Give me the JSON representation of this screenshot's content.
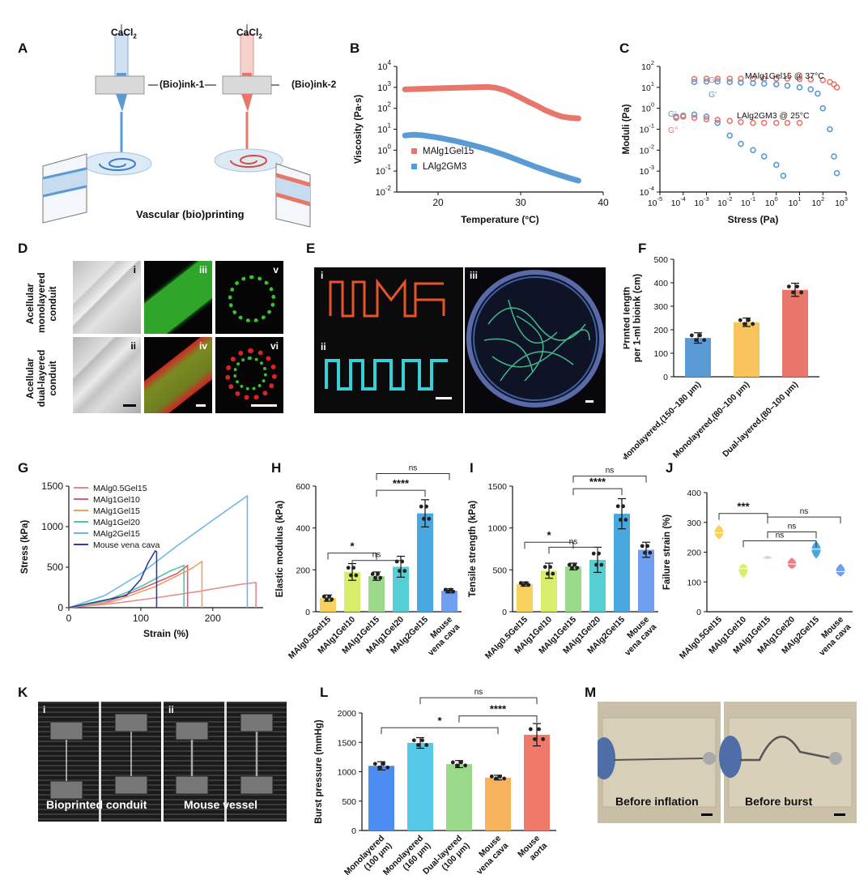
{
  "panel_labels": {
    "A": "A",
    "B": "B",
    "C": "C",
    "D": "D",
    "E": "E",
    "F": "F",
    "G": "G",
    "H": "H",
    "I": "I",
    "J": "J",
    "K": "K",
    "L": "L",
    "M": "M"
  },
  "panel_a": {
    "cacl_left": "CaCl",
    "cacl_right": "CaCl",
    "cacl_sub": "2",
    "ink1": "(Bio)ink-1",
    "ink2": "(Bio)ink-2",
    "caption": "Vascular (bio)printing",
    "colors": {
      "blue": "#5b9bd5",
      "red": "#e8766b"
    }
  },
  "panel_d": {
    "row1": [
      "Acellular",
      "monolayered",
      "conduit"
    ],
    "row2": [
      "Acellular",
      "dual-layered",
      "conduit"
    ],
    "numerals": [
      "i",
      "ii",
      "iii",
      "iv",
      "v",
      "vi"
    ]
  },
  "panel_e": {
    "numerals": [
      "i",
      "ii",
      "iii"
    ]
  },
  "panel_k": {
    "numerals": [
      "i",
      "ii"
    ],
    "left_caption": "Bioprinted conduit",
    "right_caption": "Mouse vessel"
  },
  "panel_m": {
    "left_caption": "Before inflation",
    "right_caption": "Before burst"
  },
  "chart_data": [
    {
      "id": "B",
      "type": "line",
      "xlabel": "Temperature (°C)",
      "ylabel": "Viscosity (Pa·s)",
      "xlim": [
        15,
        40
      ],
      "ylim": [
        0.01,
        10000
      ],
      "yscale": "log",
      "xticks": [
        "20",
        "30",
        "40"
      ],
      "yticks": [
        "10",
        "10",
        "10",
        "10",
        "10",
        "10",
        "10"
      ],
      "ytick_exp": [
        "-2",
        "-1",
        "0",
        "1",
        "2",
        "3",
        "4"
      ],
      "series": [
        {
          "name": "MAlg1Gel15",
          "color": "#e8766b",
          "x": [
            16,
            18,
            20,
            22,
            24,
            26,
            27,
            28,
            29,
            30,
            31,
            32,
            33,
            34,
            35,
            36,
            37
          ],
          "y": [
            800,
            850,
            900,
            950,
            1000,
            1050,
            950,
            750,
            500,
            320,
            200,
            130,
            80,
            55,
            40,
            35,
            33
          ]
        },
        {
          "name": "LAlg2GM3",
          "color": "#5b9bd5",
          "x": [
            16,
            17,
            18,
            20,
            22,
            24,
            26,
            28,
            30,
            32,
            34,
            36,
            37
          ],
          "y": [
            5,
            5.5,
            5.2,
            4,
            2.8,
            1.8,
            1.1,
            0.6,
            0.3,
            0.15,
            0.08,
            0.045,
            0.035
          ]
        }
      ]
    },
    {
      "id": "C",
      "type": "scatter",
      "xlabel": "Stress (Pa)",
      "ylabel": "Moduli (Pa)",
      "xscale": "log",
      "yscale": "log",
      "xlim": [
        1e-05,
        1000
      ],
      "ylim": [
        0.0001,
        100
      ],
      "xtick_exp": [
        "-5",
        "-4",
        "-3",
        "-2",
        "-1",
        "0",
        "1",
        "2",
        "3"
      ],
      "ytick_exp": [
        "-4",
        "-3",
        "-2",
        "-1",
        "0",
        "1",
        "2"
      ],
      "annotations": [
        "MAlg1Gel15 @ 37°C",
        "LAlg2GM3 @ 25°C"
      ],
      "series": [
        {
          "name": "G''",
          "group": "MAlg1Gel15",
          "color": "#e8766b",
          "x": [
            0.0003,
            0.001,
            0.003,
            0.01,
            0.03,
            0.1,
            0.3,
            1,
            3,
            10,
            30,
            100,
            200,
            300,
            400
          ],
          "y": [
            25,
            26,
            26,
            26,
            26,
            26,
            26,
            26,
            26,
            25,
            24,
            22,
            18,
            14,
            10
          ]
        },
        {
          "name": "G'",
          "group": "MAlg1Gel15",
          "color": "#5b9bd5",
          "x": [
            0.0003,
            0.001,
            0.003,
            0.01,
            0.03,
            0.1,
            0.3,
            1,
            3,
            10,
            30,
            60,
            100,
            200,
            300,
            400
          ],
          "y": [
            18,
            19,
            19,
            18,
            17,
            16,
            15,
            14,
            12,
            10,
            8,
            5,
            1,
            0.1,
            0.005,
            0.0008
          ]
        },
        {
          "name": "G'",
          "group": "LAlg2GM3",
          "color": "#5b9bd5",
          "x": [
            5e-05,
            0.0001,
            0.0003,
            0.001,
            0.003,
            0.01,
            0.03,
            0.1,
            0.3,
            1,
            2
          ],
          "y": [
            0.4,
            0.45,
            0.5,
            0.4,
            0.2,
            0.05,
            0.02,
            0.01,
            0.005,
            0.002,
            0.0006
          ]
        },
        {
          "name": "G''",
          "group": "LAlg2GM3",
          "color": "#e8766b",
          "x": [
            5e-05,
            0.0001,
            0.0003,
            0.001,
            0.003,
            0.01,
            0.03,
            0.1,
            0.3,
            1,
            3,
            10
          ],
          "y": [
            0.35,
            0.4,
            0.35,
            0.3,
            0.28,
            0.25,
            0.22,
            0.2,
            0.2,
            0.2,
            0.2,
            0.2
          ]
        }
      ]
    },
    {
      "id": "F",
      "type": "bar",
      "ylabel": "Printed length per 1-ml bioink (cm)",
      "ylabel_lines": [
        "Printed length",
        "per 1-ml bioink (cm)"
      ],
      "ylim": [
        0,
        500
      ],
      "yticks": [
        "0",
        "100",
        "200",
        "300",
        "400",
        "500"
      ],
      "categories": [
        [
          "Monolayered",
          "(150–180 μm)"
        ],
        [
          "Monolayered",
          "(80–100 μm)"
        ],
        [
          "Dual-layered",
          "(80–100 μm)"
        ]
      ],
      "values": [
        165,
        232,
        370
      ],
      "errors": [
        22,
        18,
        28
      ],
      "colors": [
        "#5b9bd5",
        "#f7c45e",
        "#e8766b"
      ]
    },
    {
      "id": "G",
      "type": "line",
      "xlabel": "Strain (%)",
      "ylabel": "Stress (kPa)",
      "xlim": [
        0,
        270
      ],
      "ylim": [
        0,
        1500
      ],
      "xticks": [
        "0",
        "100",
        "200"
      ],
      "yticks": [
        "0",
        "500",
        "1000",
        "1500"
      ],
      "series": [
        {
          "name": "MAlg0.5Gel15",
          "color": "#e58a8a",
          "x": [
            0,
            60,
            120,
            180,
            240,
            260
          ],
          "y": [
            0,
            50,
            120,
            200,
            290,
            310
          ]
        },
        {
          "name": "MAlg1Gel10",
          "color": "#e05a7a",
          "x": [
            0,
            50,
            100,
            150,
            165
          ],
          "y": [
            0,
            60,
            230,
            420,
            520
          ]
        },
        {
          "name": "MAlg1Gel15",
          "color": "#f0a060",
          "x": [
            0,
            60,
            120,
            170,
            185
          ],
          "y": [
            0,
            70,
            260,
            480,
            570
          ]
        },
        {
          "name": "MAlg1Gel20",
          "color": "#50c8a0",
          "x": [
            0,
            50,
            100,
            140,
            160
          ],
          "y": [
            0,
            80,
            260,
            450,
            520
          ]
        },
        {
          "name": "MAlg2Gel15",
          "color": "#6fb6e8",
          "x": [
            0,
            50,
            100,
            150,
            200,
            248
          ],
          "y": [
            0,
            150,
            420,
            760,
            1080,
            1380
          ]
        },
        {
          "name": "Mouse vena cava",
          "color": "#3040a0",
          "x": [
            0,
            80,
            100,
            110,
            120,
            122
          ],
          "y": [
            0,
            150,
            350,
            550,
            700,
            690
          ]
        }
      ]
    },
    {
      "id": "H",
      "type": "bar",
      "ylabel": "Elastic modulus (kPa)",
      "ylim": [
        0,
        600
      ],
      "yticks": [
        "0",
        "200",
        "400",
        "600"
      ],
      "categories": [
        "MAlg0.5Gel15",
        "MAlg1Gel10",
        "MAlg1Gel15",
        "MAlg1Gel20",
        "MAlg2Gel15",
        "Mouse vena cava"
      ],
      "category_lines": [
        [
          "MAlg0.5Gel15"
        ],
        [
          "MAlg1Gel10"
        ],
        [
          "MAlg1Gel15"
        ],
        [
          "MAlg1Gel20"
        ],
        [
          "MAlg2Gel15"
        ],
        [
          "Mouse",
          "vena cava"
        ]
      ],
      "values": [
        65,
        190,
        170,
        215,
        470,
        100
      ],
      "errors": [
        15,
        40,
        20,
        50,
        65,
        10
      ],
      "colors": [
        "#f7d25e",
        "#d8ed6a",
        "#9ad98a",
        "#56cfd4",
        "#4aa8e0",
        "#6fa0f0"
      ],
      "significance": [
        "*",
        "ns",
        "****",
        "ns"
      ]
    },
    {
      "id": "I",
      "type": "bar",
      "ylabel": "Tensile strength (kPa)",
      "ylim": [
        0,
        1500
      ],
      "yticks": [
        "0",
        "500",
        "1000",
        "1500"
      ],
      "categories": [
        "MAlg0.5Gel15",
        "MAlg1Gel10",
        "MAlg1Gel15",
        "MAlg1Gel20",
        "MAlg2Gel15",
        "Mouse vena cava"
      ],
      "category_lines": [
        [
          "MAlg0.5Gel15"
        ],
        [
          "MAlg1Gel10"
        ],
        [
          "MAlg1Gel15"
        ],
        [
          "MAlg1Gel20"
        ],
        [
          "MAlg2Gel15"
        ],
        [
          "Mouse",
          "vena cava"
        ]
      ],
      "values": [
        330,
        490,
        540,
        620,
        1170,
        740
      ],
      "errors": [
        25,
        90,
        40,
        150,
        180,
        90
      ],
      "colors": [
        "#f7d25e",
        "#d8ed6a",
        "#9ad98a",
        "#56cfd4",
        "#4aa8e0",
        "#6fa0f0"
      ],
      "significance": [
        "*",
        "ns",
        "****",
        "ns"
      ]
    },
    {
      "id": "J",
      "type": "violin",
      "ylabel": "Failure strain (%)",
      "ylim": [
        0,
        400
      ],
      "yticks": [
        "0",
        "100",
        "200",
        "300",
        "400"
      ],
      "categories": [
        "MAlg0.5Gel15",
        "MAlg1Gel10",
        "MAlg1Gel15",
        "MAlg1Gel20",
        "MAlg2Gel15",
        "Mouse vena cava"
      ],
      "category_lines": [
        [
          "MAlg0.5Gel15"
        ],
        [
          "MAlg1Gel10"
        ],
        [
          "MAlg1Gel15"
        ],
        [
          "MAlg1Gel20"
        ],
        [
          "MAlg2Gel15"
        ],
        [
          "Mouse",
          "vena cava"
        ]
      ],
      "values": [
        265,
        145,
        180,
        160,
        210,
        135
      ],
      "low": [
        245,
        115,
        178,
        145,
        180,
        120
      ],
      "high": [
        290,
        160,
        185,
        180,
        235,
        160
      ],
      "colors": [
        "#f7d25e",
        "#d8ed6a",
        "#9ad98a",
        "#f57a86",
        "#4aa8e0",
        "#6fa0f0"
      ],
      "significance": [
        "***",
        "ns",
        "ns",
        "ns"
      ]
    },
    {
      "id": "L",
      "type": "bar",
      "ylabel": "Burst pressure (mmHg)",
      "ylim": [
        0,
        2000
      ],
      "yticks": [
        "0",
        "500",
        "1000",
        "1500",
        "2000"
      ],
      "categories": [
        "Monolayered (100 μm)",
        "Monolayered (160 μm)",
        "Dual-layered (100 μm)",
        "Mouse vena cava",
        "Mouse aorta"
      ],
      "category_lines": [
        [
          "Monolayered",
          "(100 μm)"
        ],
        [
          "Monolayered",
          "(160 μm)"
        ],
        [
          "Dual-layered",
          "(100 μm)"
        ],
        [
          "Mouse",
          "vena cava"
        ],
        [
          "Mouse",
          "aorta"
        ]
      ],
      "values": [
        1100,
        1490,
        1130,
        900,
        1630
      ],
      "errors": [
        70,
        90,
        60,
        40,
        190
      ],
      "colors": [
        "#4a8cf0",
        "#56c8e8",
        "#9ad98a",
        "#f7b25e",
        "#f07a6a"
      ],
      "significance": [
        "ns",
        "*",
        "****"
      ]
    }
  ]
}
